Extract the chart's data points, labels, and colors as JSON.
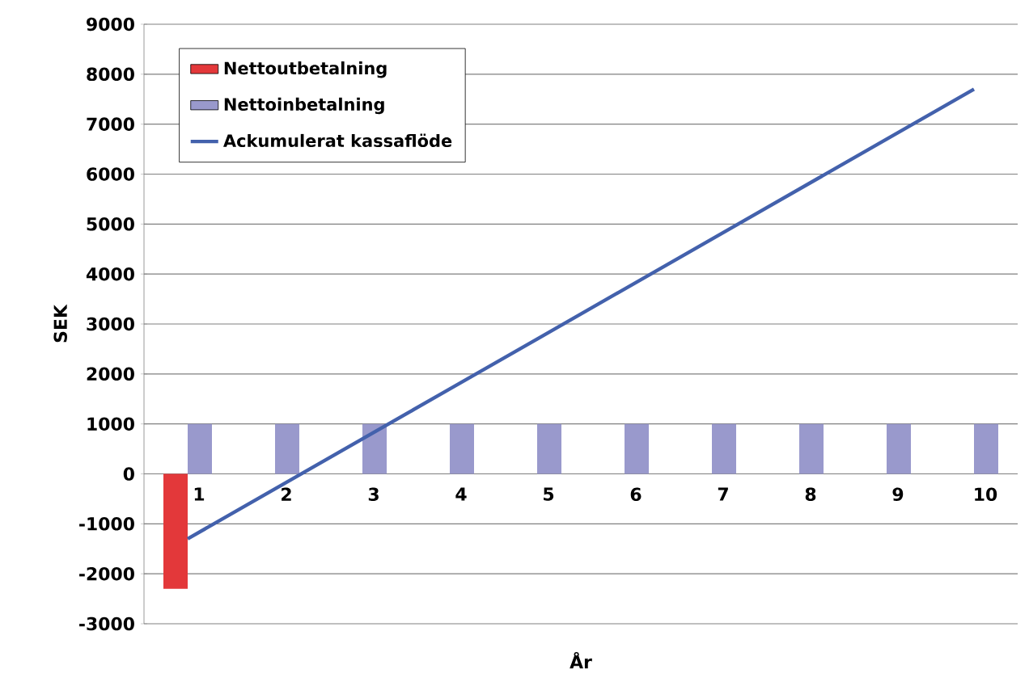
{
  "chart_data": {
    "type": "bar",
    "xlabel": "År",
    "ylabel": "SEK",
    "categories": [
      "1",
      "2",
      "3",
      "4",
      "5",
      "6",
      "7",
      "8",
      "9",
      "10"
    ],
    "series": [
      {
        "name": "Nettoutbetalning",
        "color": "#e3383a",
        "values": [
          -2300,
          null,
          null,
          null,
          null,
          null,
          null,
          null,
          null,
          null
        ]
      },
      {
        "name": "Nettoinbetalning",
        "color": "#9999cc",
        "values": [
          1000,
          1000,
          1000,
          1000,
          1000,
          1000,
          1000,
          1000,
          1000,
          1000
        ]
      },
      {
        "name": "Ackumulerat kassaflöde",
        "type": "line",
        "color": "#4361ac",
        "values": [
          -1300,
          -300,
          700,
          1700,
          2700,
          3700,
          4700,
          5700,
          6700,
          7700
        ]
      }
    ],
    "ylim": [
      -3000,
      9000
    ],
    "yticks": [
      -3000,
      -2000,
      -1000,
      0,
      1000,
      2000,
      3000,
      4000,
      5000,
      6000,
      7000,
      8000,
      9000
    ],
    "grid": "y",
    "legend": "top left"
  }
}
